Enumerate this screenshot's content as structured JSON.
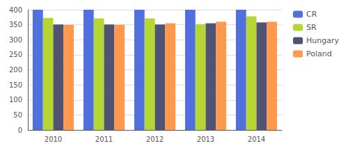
{
  "chart_data": {
    "type": "bar",
    "categories": [
      "2010",
      "2011",
      "2012",
      "2013",
      "2014"
    ],
    "series": [
      {
        "name": "CR",
        "values": [
          400,
          400,
          400,
          400,
          400
        ]
      },
      {
        "name": "SR",
        "values": [
          373,
          371,
          371,
          352,
          378
        ]
      },
      {
        "name": "Hungary",
        "values": [
          351,
          351,
          351,
          355,
          358
        ]
      },
      {
        "name": "Poland",
        "values": [
          350,
          350,
          355,
          360,
          360
        ]
      }
    ],
    "ylim": [
      0,
      400
    ],
    "yticks": [
      0,
      50,
      100,
      150,
      200,
      250,
      300,
      350,
      400
    ],
    "grid": true,
    "legend": "right"
  }
}
